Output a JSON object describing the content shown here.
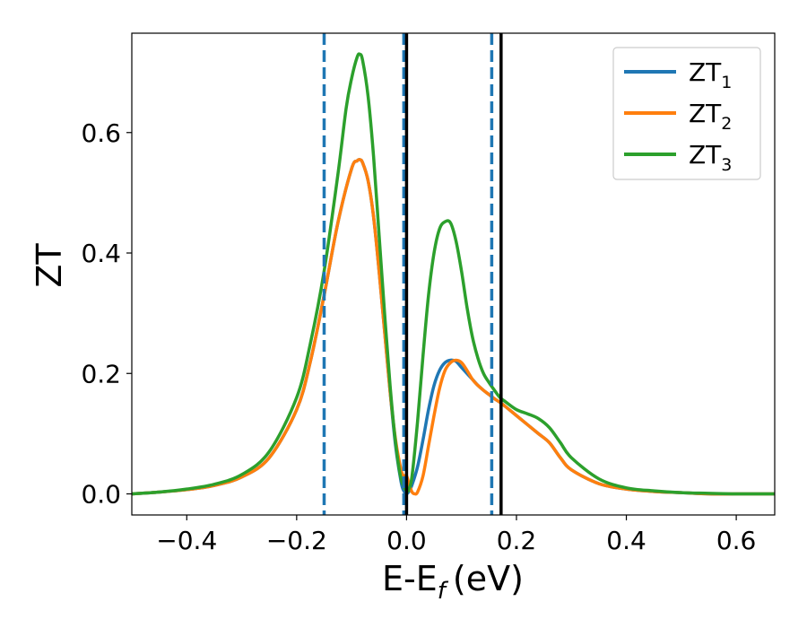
{
  "chart_data": {
    "type": "line",
    "xlabel_main": "E-E",
    "xlabel_sub": "f",
    "xlabel_unit": "(eV)",
    "ylabel": "ZT",
    "xlim": [
      -0.5,
      0.67
    ],
    "ylim": [
      -0.035,
      0.765
    ],
    "xticks": [
      -0.4,
      -0.2,
      0.0,
      0.2,
      0.4,
      0.6
    ],
    "xtick_labels": [
      "−0.4",
      "−0.2",
      "0.0",
      "0.2",
      "0.4",
      "0.6"
    ],
    "yticks": [
      0.0,
      0.2,
      0.4,
      0.6
    ],
    "ytick_labels": [
      "0.0",
      "0.2",
      "0.4",
      "0.6"
    ],
    "grid": false,
    "legend_position": "top-right",
    "series": [
      {
        "name": "ZT",
        "name_sub": "1",
        "color": "#1f77b4",
        "x": [
          -0.5,
          -0.45,
          -0.4,
          -0.35,
          -0.3,
          -0.25,
          -0.2,
          -0.175,
          -0.15,
          -0.125,
          -0.1,
          -0.09,
          -0.085,
          -0.08,
          -0.07,
          -0.06,
          -0.05,
          -0.04,
          -0.03,
          -0.02,
          -0.01,
          -0.005,
          0.0,
          0.005,
          0.01,
          0.02,
          0.03,
          0.04,
          0.05,
          0.06,
          0.07,
          0.08,
          0.09,
          0.1,
          0.11,
          0.12,
          0.13,
          0.14,
          0.15,
          0.16,
          0.17,
          0.18,
          0.2,
          0.22,
          0.24,
          0.26,
          0.28,
          0.3,
          0.35,
          0.4,
          0.45,
          0.5,
          0.55,
          0.6,
          0.67
        ],
        "y": [
          0.0,
          0.003,
          0.007,
          0.014,
          0.028,
          0.06,
          0.14,
          0.22,
          0.33,
          0.45,
          0.54,
          0.553,
          0.555,
          0.55,
          0.52,
          0.46,
          0.37,
          0.27,
          0.17,
          0.08,
          0.02,
          0.005,
          0.0,
          0.005,
          0.015,
          0.045,
          0.09,
          0.14,
          0.18,
          0.205,
          0.218,
          0.222,
          0.22,
          0.21,
          0.2,
          0.19,
          0.18,
          0.172,
          0.165,
          0.158,
          0.152,
          0.145,
          0.13,
          0.115,
          0.1,
          0.085,
          0.06,
          0.04,
          0.017,
          0.008,
          0.004,
          0.002,
          0.0,
          0.0,
          0.0
        ]
      },
      {
        "name": "ZT",
        "name_sub": "2",
        "color": "#ff7f0e",
        "x": [
          -0.5,
          -0.45,
          -0.4,
          -0.35,
          -0.3,
          -0.25,
          -0.2,
          -0.175,
          -0.15,
          -0.125,
          -0.1,
          -0.09,
          -0.085,
          -0.08,
          -0.07,
          -0.06,
          -0.05,
          -0.04,
          -0.03,
          -0.02,
          -0.01,
          -0.005,
          0.0,
          0.005,
          0.01,
          0.015,
          0.02,
          0.03,
          0.04,
          0.05,
          0.06,
          0.07,
          0.08,
          0.09,
          0.1,
          0.11,
          0.12,
          0.13,
          0.14,
          0.15,
          0.16,
          0.17,
          0.18,
          0.2,
          0.22,
          0.24,
          0.26,
          0.28,
          0.3,
          0.35,
          0.4,
          0.45,
          0.5,
          0.55,
          0.6,
          0.67
        ],
        "y": [
          0.0,
          0.003,
          0.007,
          0.014,
          0.028,
          0.06,
          0.14,
          0.22,
          0.33,
          0.45,
          0.54,
          0.553,
          0.555,
          0.55,
          0.52,
          0.46,
          0.37,
          0.27,
          0.17,
          0.09,
          0.04,
          0.03,
          0.03,
          0.015,
          0.003,
          0.0,
          0.003,
          0.03,
          0.08,
          0.13,
          0.175,
          0.205,
          0.218,
          0.222,
          0.218,
          0.205,
          0.19,
          0.18,
          0.172,
          0.165,
          0.158,
          0.152,
          0.145,
          0.13,
          0.115,
          0.1,
          0.085,
          0.06,
          0.04,
          0.017,
          0.008,
          0.004,
          0.002,
          0.0,
          0.0,
          0.0
        ]
      },
      {
        "name": "ZT",
        "name_sub": "3",
        "color": "#2ca02c",
        "x": [
          -0.5,
          -0.45,
          -0.4,
          -0.35,
          -0.3,
          -0.25,
          -0.2,
          -0.175,
          -0.15,
          -0.125,
          -0.11,
          -0.1,
          -0.09,
          -0.085,
          -0.08,
          -0.07,
          -0.06,
          -0.05,
          -0.04,
          -0.03,
          -0.02,
          -0.01,
          0.0,
          0.005,
          0.01,
          0.02,
          0.03,
          0.04,
          0.05,
          0.06,
          0.07,
          0.08,
          0.09,
          0.1,
          0.11,
          0.12,
          0.13,
          0.14,
          0.15,
          0.16,
          0.17,
          0.18,
          0.2,
          0.22,
          0.24,
          0.26,
          0.28,
          0.3,
          0.35,
          0.4,
          0.45,
          0.5,
          0.55,
          0.6,
          0.67
        ],
        "y": [
          0.0,
          0.003,
          0.008,
          0.016,
          0.032,
          0.07,
          0.16,
          0.25,
          0.37,
          0.53,
          0.64,
          0.69,
          0.725,
          0.73,
          0.72,
          0.66,
          0.56,
          0.43,
          0.3,
          0.18,
          0.085,
          0.025,
          0.005,
          0.01,
          0.03,
          0.12,
          0.23,
          0.33,
          0.4,
          0.44,
          0.452,
          0.45,
          0.42,
          0.37,
          0.31,
          0.26,
          0.225,
          0.2,
          0.185,
          0.172,
          0.16,
          0.153,
          0.14,
          0.133,
          0.125,
          0.11,
          0.085,
          0.06,
          0.025,
          0.01,
          0.005,
          0.002,
          0.001,
          0.0,
          0.0
        ]
      }
    ],
    "vlines": [
      {
        "x": -0.15,
        "color": "#1f77b4",
        "style": "dashed"
      },
      {
        "x": -0.005,
        "color": "#1f77b4",
        "style": "dashed"
      },
      {
        "x": 0.155,
        "color": "#1f77b4",
        "style": "dashed"
      },
      {
        "x": 0.0,
        "color": "#000000",
        "style": "solid"
      },
      {
        "x": 0.172,
        "color": "#000000",
        "style": "solid"
      }
    ]
  }
}
